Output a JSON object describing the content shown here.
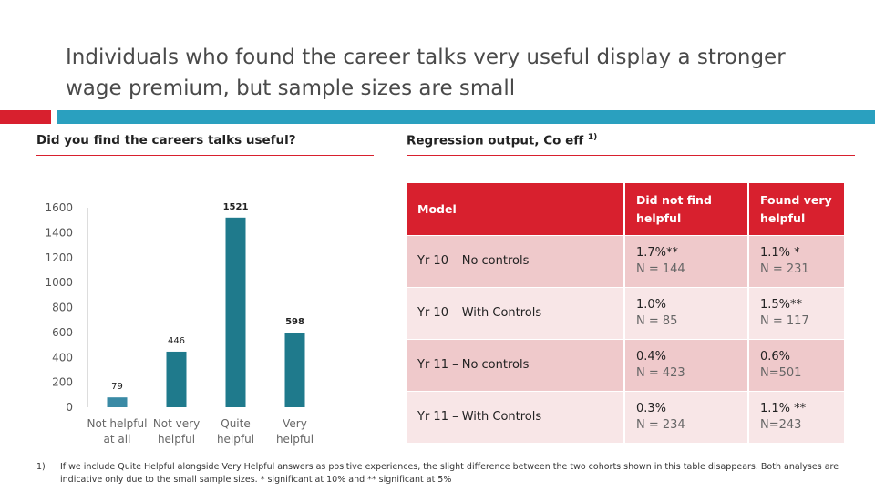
{
  "slide": {
    "title": "Individuals who found the career talks very useful display a stronger wage premium, but sample sizes are small",
    "left_heading": "Did you find the careers talks useful?",
    "right_heading": "Regression output, Co eff",
    "right_heading_sup": "1)",
    "footnote_num": "1)",
    "footnote_text": "If we include Quite Helpful alongside Very Helpful answers as positive experiences, the slight difference between the two cohorts shown in this table disappears. Both analyses are indicative only due to the small sample sizes. * significant at 10% and ** significant at 5%"
  },
  "chart_data": {
    "type": "bar",
    "categories": [
      [
        "Not helpful",
        "at all"
      ],
      [
        "Not very",
        "helpful"
      ],
      [
        "Quite",
        "helpful"
      ],
      [
        "Very",
        "helpful"
      ]
    ],
    "values": [
      79,
      446,
      1521,
      598
    ],
    "data_labels": [
      "79",
      "446",
      "1521",
      "598"
    ],
    "yticks": [
      "0",
      "200",
      "400",
      "600",
      "800",
      "1000",
      "1200",
      "1400",
      "1600"
    ],
    "ylim": [
      0,
      1600
    ],
    "colors": [
      "#3a8aa5",
      "#1f7a8c",
      "#1f7a8c",
      "#1f7a8c"
    ],
    "grid": false
  },
  "table": {
    "headers": [
      "Model",
      "Did not find helpful",
      "Found very helpful"
    ],
    "rows": [
      {
        "model": "Yr 10 – No controls",
        "c1": "1.7%**",
        "c1n": "N = 144",
        "c2": "1.1% *",
        "c2n": "N = 231"
      },
      {
        "model": "Yr 10 – With Controls",
        "c1": "1.0%",
        "c1n": "N = 85",
        "c2": "1.5%**",
        "c2n": "N = 117"
      },
      {
        "model": "Yr 11 – No controls",
        "c1": "0.4%",
        "c1n": "N = 423",
        "c2": "0.6%",
        "c2n": "N=501"
      },
      {
        "model": "Yr 11 – With Controls",
        "c1": "0.3%",
        "c1n": "N = 234",
        "c2": "1.1% **",
        "c2n": "N=243"
      }
    ]
  }
}
